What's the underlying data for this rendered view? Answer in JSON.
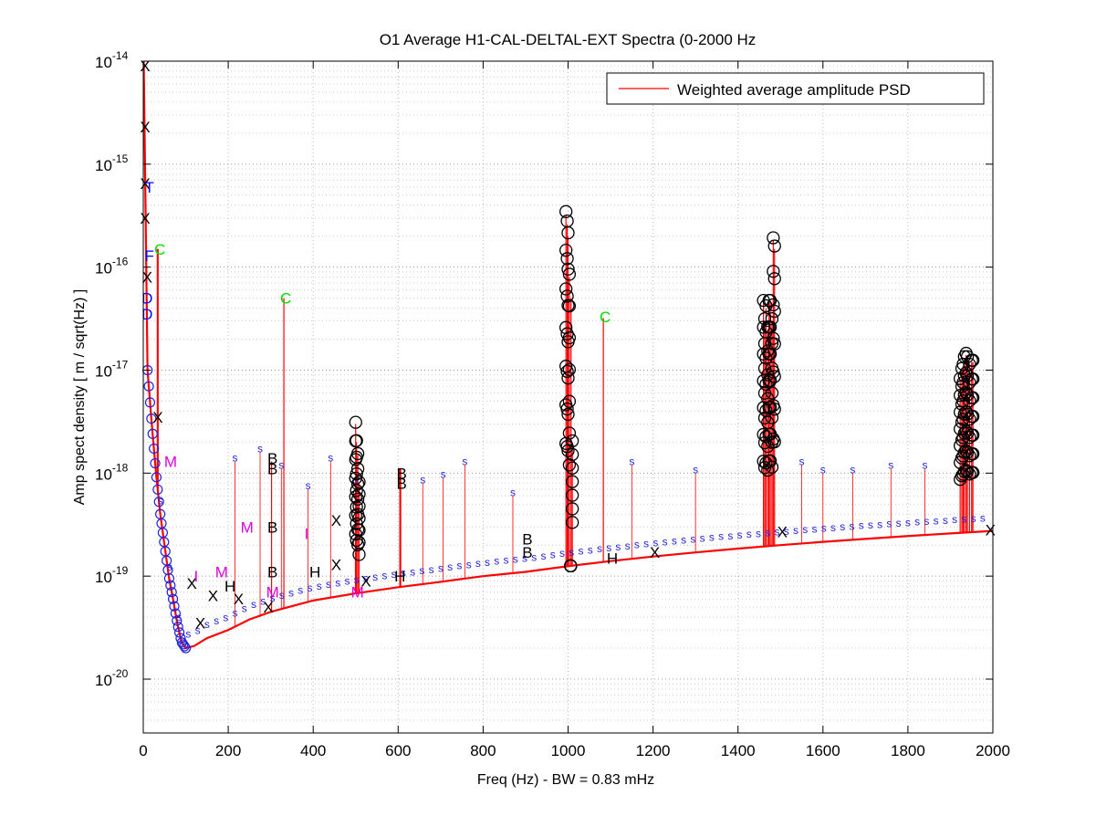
{
  "chart_data": {
    "type": "line",
    "title": "O1 Average H1-CAL-DELTAL-EXT Spectra (0-2000 Hz",
    "xlabel": "Freq (Hz) - BW = 0.83 mHz",
    "ylabel": "Amp spect density [ m / sqrt(Hz) ]",
    "xlim": [
      0,
      2000
    ],
    "ylim": [
      3e-21,
      1e-14
    ],
    "yscale": "log",
    "grid": true,
    "legend": {
      "placement": "top-right",
      "entries": [
        "Weighted average amplitude PSD"
      ]
    },
    "x_ticks": [
      {
        "value": 0,
        "label": "0"
      },
      {
        "value": 200,
        "label": "200"
      },
      {
        "value": 400,
        "label": "400"
      },
      {
        "value": 600,
        "label": "600"
      },
      {
        "value": 800,
        "label": "800"
      },
      {
        "value": 1000,
        "label": "1000"
      },
      {
        "value": 1200,
        "label": "1200"
      },
      {
        "value": 1400,
        "label": "1400"
      },
      {
        "value": 1600,
        "label": "1600"
      },
      {
        "value": 1800,
        "label": "1800"
      },
      {
        "value": 2000,
        "label": "2000"
      }
    ],
    "y_ticks": [
      {
        "exp": -20,
        "base": "10",
        "sup": "-20"
      },
      {
        "exp": -19,
        "base": "10",
        "sup": "-19"
      },
      {
        "exp": -18,
        "base": "10",
        "sup": "-18"
      },
      {
        "exp": -17,
        "base": "10",
        "sup": "-17"
      },
      {
        "exp": -16,
        "base": "10",
        "sup": "-16"
      },
      {
        "exp": -15,
        "base": "10",
        "sup": "-15"
      },
      {
        "exp": -14,
        "base": "10",
        "sup": "-14"
      }
    ],
    "series": [
      {
        "name": "Weighted average amplitude PSD",
        "color": "#ff0000",
        "baseline": [
          [
            1,
            1e-14
          ],
          [
            5,
            5e-16
          ],
          [
            10,
            1e-17
          ],
          [
            20,
            3e-18
          ],
          [
            30,
            1e-18
          ],
          [
            40,
            4e-19
          ],
          [
            50,
            2e-19
          ],
          [
            60,
            1e-19
          ],
          [
            70,
            6e-20
          ],
          [
            80,
            3.5e-20
          ],
          [
            90,
            2.3e-20
          ],
          [
            100,
            2e-20
          ],
          [
            120,
            2.1e-20
          ],
          [
            150,
            2.5e-20
          ],
          [
            200,
            3e-20
          ],
          [
            250,
            3.8e-20
          ],
          [
            300,
            4.5e-20
          ],
          [
            400,
            5.8e-20
          ],
          [
            500,
            6.8e-20
          ],
          [
            600,
            7.8e-20
          ],
          [
            700,
            8.8e-20
          ],
          [
            800,
            1e-19
          ],
          [
            900,
            1.1e-19
          ],
          [
            1000,
            1.25e-19
          ],
          [
            1100,
            1.4e-19
          ],
          [
            1200,
            1.55e-19
          ],
          [
            1300,
            1.7e-19
          ],
          [
            1400,
            1.85e-19
          ],
          [
            1500,
            2e-19
          ],
          [
            1600,
            2.15e-19
          ],
          [
            1700,
            2.3e-19
          ],
          [
            1800,
            2.45e-19
          ],
          [
            1900,
            2.6e-19
          ],
          [
            2000,
            2.75e-19
          ]
        ],
        "spikes": [
          [
            33,
            1.5e-16
          ],
          [
            35,
            1.5e-16
          ],
          [
            302,
            1.3e-18
          ],
          [
            331,
            5e-17
          ],
          [
            500,
            3e-18
          ],
          [
            502,
            2e-18
          ],
          [
            505,
            1.5e-18
          ],
          [
            508,
            8e-19
          ],
          [
            604,
            1.1e-18
          ],
          [
            606,
            1.1e-18
          ],
          [
            995,
            3.2e-16
          ],
          [
            998,
            2.6e-16
          ],
          [
            1000,
            2e-16
          ],
          [
            1003,
            8e-17
          ],
          [
            1007,
            5e-17
          ],
          [
            1010,
            2e-18
          ],
          [
            1083,
            3.2e-17
          ],
          [
            1460,
            4.5e-17
          ],
          [
            1463,
            3e-17
          ],
          [
            1466,
            4e-17
          ],
          [
            1470,
            2.5e-17
          ],
          [
            1473,
            4.5e-17
          ],
          [
            1476,
            4.5e-17
          ],
          [
            1480,
            3e-17
          ],
          [
            1483,
            1.8e-16
          ],
          [
            1486,
            1.5e-16
          ],
          [
            1923,
            8e-18
          ],
          [
            1927,
            1e-17
          ],
          [
            1930,
            1.1e-17
          ],
          [
            1933,
            1.3e-17
          ],
          [
            1937,
            1.4e-17
          ],
          [
            1940,
            1.3e-17
          ],
          [
            1945,
            1.1e-17
          ],
          [
            1950,
            1.2e-17
          ],
          [
            1953,
            1.2e-17
          ]
        ],
        "combs": [
          {
            "x": 216,
            "y": 1.3e-18
          },
          {
            "x": 275,
            "y": 1.6e-18
          },
          {
            "x": 325,
            "y": 1.1e-18
          },
          {
            "x": 388,
            "y": 7e-19
          },
          {
            "x": 441,
            "y": 1.3e-18
          },
          {
            "x": 499,
            "y": 8e-19
          },
          {
            "x": 658,
            "y": 8e-19
          },
          {
            "x": 706,
            "y": 9e-19
          },
          {
            "x": 757,
            "y": 1.2e-18
          },
          {
            "x": 870,
            "y": 6e-19
          },
          {
            "x": 1150,
            "y": 1.2e-18
          },
          {
            "x": 1300,
            "y": 1e-18
          },
          {
            "x": 1550,
            "y": 1.2e-18
          },
          {
            "x": 1600,
            "y": 1e-18
          },
          {
            "x": 1670,
            "y": 1e-18
          },
          {
            "x": 1760,
            "y": 1.1e-18
          },
          {
            "x": 1840,
            "y": 1.1e-18
          }
        ]
      }
    ],
    "annotations": [
      {
        "label": "X",
        "color": "#000000",
        "x": 0,
        "y": 9e-15
      },
      {
        "label": "X",
        "color": "#000000",
        "x": 0,
        "y": 2.3e-15
      },
      {
        "label": "X",
        "color": "#000000",
        "x": 0,
        "y": 6.5e-16
      },
      {
        "label": "X",
        "color": "#000000",
        "x": 0,
        "y": 3e-16
      },
      {
        "label": "X",
        "color": "#000000",
        "x": 5,
        "y": 8e-17
      },
      {
        "label": "X",
        "color": "#000000",
        "x": 30,
        "y": 3.5e-18
      },
      {
        "label": "X",
        "color": "#000000",
        "x": 110,
        "y": 8.5e-20
      },
      {
        "label": "X",
        "color": "#000000",
        "x": 130,
        "y": 3.5e-20
      },
      {
        "label": "X",
        "color": "#000000",
        "x": 160,
        "y": 6.5e-20
      },
      {
        "label": "X",
        "color": "#000000",
        "x": 220,
        "y": 6e-20
      },
      {
        "label": "X",
        "color": "#000000",
        "x": 290,
        "y": 5e-20
      },
      {
        "label": "X",
        "color": "#000000",
        "x": 450,
        "y": 3.5e-19
      },
      {
        "label": "X",
        "color": "#000000",
        "x": 450,
        "y": 1.3e-19
      },
      {
        "label": "X",
        "color": "#000000",
        "x": 520,
        "y": 9e-20
      },
      {
        "label": "X",
        "color": "#000000",
        "x": 1200,
        "y": 1.7e-19
      },
      {
        "label": "X",
        "color": "#000000",
        "x": 1500,
        "y": 2.7e-19
      },
      {
        "label": "X",
        "color": "#000000",
        "x": 1990,
        "y": 2.8e-19
      },
      {
        "label": "C",
        "color": "#00dd00",
        "x": 35,
        "y": 1.5e-16
      },
      {
        "label": "C",
        "color": "#00dd00",
        "x": 331,
        "y": 5e-17
      },
      {
        "label": "C",
        "color": "#00dd00",
        "x": 1083,
        "y": 3.3e-17
      },
      {
        "label": "B",
        "color": "#000000",
        "x": 300,
        "y": 1.4e-18
      },
      {
        "label": "B",
        "color": "#000000",
        "x": 300,
        "y": 1.1e-18
      },
      {
        "label": "B",
        "color": "#000000",
        "x": 300,
        "y": 3e-19
      },
      {
        "label": "B",
        "color": "#000000",
        "x": 300,
        "y": 1.1e-19
      },
      {
        "label": "B",
        "color": "#000000",
        "x": 604,
        "y": 1e-18
      },
      {
        "label": "B",
        "color": "#000000",
        "x": 604,
        "y": 8e-19
      },
      {
        "label": "B",
        "color": "#000000",
        "x": 900,
        "y": 2.3e-19
      },
      {
        "label": "B",
        "color": "#000000",
        "x": 900,
        "y": 1.7e-19
      },
      {
        "label": "H",
        "color": "#000000",
        "x": 200,
        "y": 8e-20
      },
      {
        "label": "H",
        "color": "#000000",
        "x": 400,
        "y": 1.1e-19
      },
      {
        "label": "H",
        "color": "#000000",
        "x": 600,
        "y": 1e-19
      },
      {
        "label": "H",
        "color": "#000000",
        "x": 1100,
        "y": 1.5e-19
      },
      {
        "label": "M",
        "color": "#dd00dd",
        "x": 180,
        "y": 1.1e-19
      },
      {
        "label": "M",
        "color": "#dd00dd",
        "x": 300,
        "y": 7e-20
      },
      {
        "label": "M",
        "color": "#dd00dd",
        "x": 500,
        "y": 7e-20
      },
      {
        "label": "M",
        "color": "#dd00dd",
        "x": 240,
        "y": 3e-19
      },
      {
        "label": "M",
        "color": "#dd00dd",
        "x": 60,
        "y": 1.3e-18
      },
      {
        "label": "I",
        "color": "#dd00dd",
        "x": 120,
        "y": 1e-19
      },
      {
        "label": "I",
        "color": "#dd00dd",
        "x": 380,
        "y": 2.6e-19
      },
      {
        "label": "D",
        "color": "#0000ff",
        "x": 5,
        "y": 5e-17
      },
      {
        "label": "D",
        "color": "#0000ff",
        "x": 5,
        "y": 3.5e-17
      },
      {
        "label": "F",
        "color": "#0000ff",
        "x": 10,
        "y": 1.3e-16
      },
      {
        "label": "T",
        "color": "#0000ff",
        "x": 10,
        "y": 6e-16
      }
    ],
    "circles": [
      995,
      998,
      1000,
      1003,
      1006,
      1010,
      500,
      502,
      505,
      508,
      1460,
      1463,
      1466,
      1470,
      1473,
      1476,
      1480,
      1483,
      1486,
      1923,
      1927,
      1930,
      1933,
      1937,
      1940,
      1945,
      1950,
      1953
    ]
  }
}
